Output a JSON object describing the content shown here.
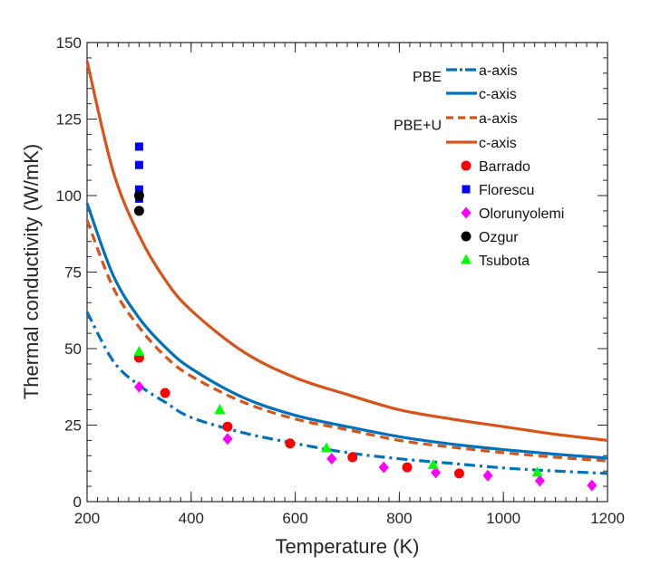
{
  "chart_data": {
    "type": "line",
    "title": "",
    "xlabel": "Temperature (K)",
    "ylabel": "Thermal conductivity (W/mK)",
    "xlim": [
      200,
      1200
    ],
    "ylim": [
      0,
      150
    ],
    "xticks": [
      200,
      400,
      600,
      800,
      1000,
      1200
    ],
    "yticks": [
      0,
      25,
      50,
      75,
      100,
      125,
      150
    ],
    "xtick_labels": [
      "200",
      "400",
      "600",
      "800",
      "1000",
      "1200"
    ],
    "ytick_labels": [
      "0",
      "25",
      "50",
      "75",
      "100",
      "125",
      "150"
    ],
    "x_minor_step": 20,
    "y_minor_step": 5,
    "grid": false,
    "legend_position": "top-right",
    "legend_groups": [
      {
        "label": "PBE",
        "entries": [
          0,
          1
        ]
      },
      {
        "label": "PBE+U",
        "entries": [
          2,
          3
        ]
      }
    ],
    "series": [
      {
        "name": "a-axis",
        "group": "PBE",
        "color": "#0072BD",
        "style": "dash-dot",
        "x": [
          200,
          250,
          300,
          350,
          400,
          500,
          600,
          700,
          800,
          900,
          1000,
          1100,
          1200
        ],
        "y": [
          62,
          46,
          38,
          32.5,
          27.5,
          22.5,
          19,
          16,
          14,
          12.5,
          11,
          10,
          9.2
        ]
      },
      {
        "name": "c-axis",
        "group": "PBE",
        "color": "#0072BD",
        "style": "solid",
        "x": [
          200,
          250,
          300,
          350,
          400,
          500,
          600,
          700,
          800,
          900,
          1000,
          1100,
          1200
        ],
        "y": [
          97.5,
          74,
          60,
          50.5,
          43.5,
          34,
          28.2,
          24.5,
          21.2,
          18.8,
          17,
          15.5,
          14.2
        ]
      },
      {
        "name": "a-axis",
        "group": "PBE+U",
        "color": "#D95319",
        "style": "dashed",
        "x": [
          200,
          250,
          300,
          350,
          400,
          500,
          600,
          700,
          800,
          900,
          1000,
          1100,
          1200
        ],
        "y": [
          92,
          70,
          57,
          47.5,
          41,
          32.5,
          27,
          23.5,
          20,
          17.8,
          16,
          14.5,
          13.3
        ]
      },
      {
        "name": "c-axis",
        "group": "PBE+U",
        "color": "#D95319",
        "style": "solid",
        "x": [
          200,
          250,
          300,
          350,
          400,
          500,
          600,
          700,
          800,
          900,
          1000,
          1100,
          1200
        ],
        "y": [
          144,
          108,
          87,
          72.5,
          62.5,
          49,
          40.5,
          35,
          30,
          27,
          24.5,
          22,
          20
        ]
      }
    ],
    "scatter": [
      {
        "name": "Barrado",
        "marker": "circle",
        "color": "#FF0000",
        "x": [
          300,
          350,
          470,
          590,
          710,
          815,
          915
        ],
        "y": [
          47,
          35.5,
          24.5,
          19,
          14.5,
          11.2,
          9.2
        ]
      },
      {
        "name": "Florescu",
        "marker": "square",
        "color": "#0000FF",
        "x": [
          300,
          300,
          300,
          300
        ],
        "y": [
          116,
          110,
          102,
          99
        ]
      },
      {
        "name": "Olorunyolemi",
        "marker": "diamond",
        "color": "#FF00FF",
        "x": [
          300,
          470,
          670,
          770,
          870,
          970,
          1070,
          1170
        ],
        "y": [
          37.5,
          20.5,
          14,
          11.2,
          9.5,
          8.5,
          6.8,
          5.3
        ]
      },
      {
        "name": "Ozgur",
        "marker": "circle",
        "color": "#000000",
        "x": [
          300,
          300
        ],
        "y": [
          100,
          95
        ]
      },
      {
        "name": "Tsubota",
        "marker": "triangle",
        "color": "#00FF00",
        "x": [
          300,
          455,
          660,
          865,
          1065
        ],
        "y": [
          49,
          30,
          17.5,
          12,
          9.5
        ]
      }
    ]
  }
}
